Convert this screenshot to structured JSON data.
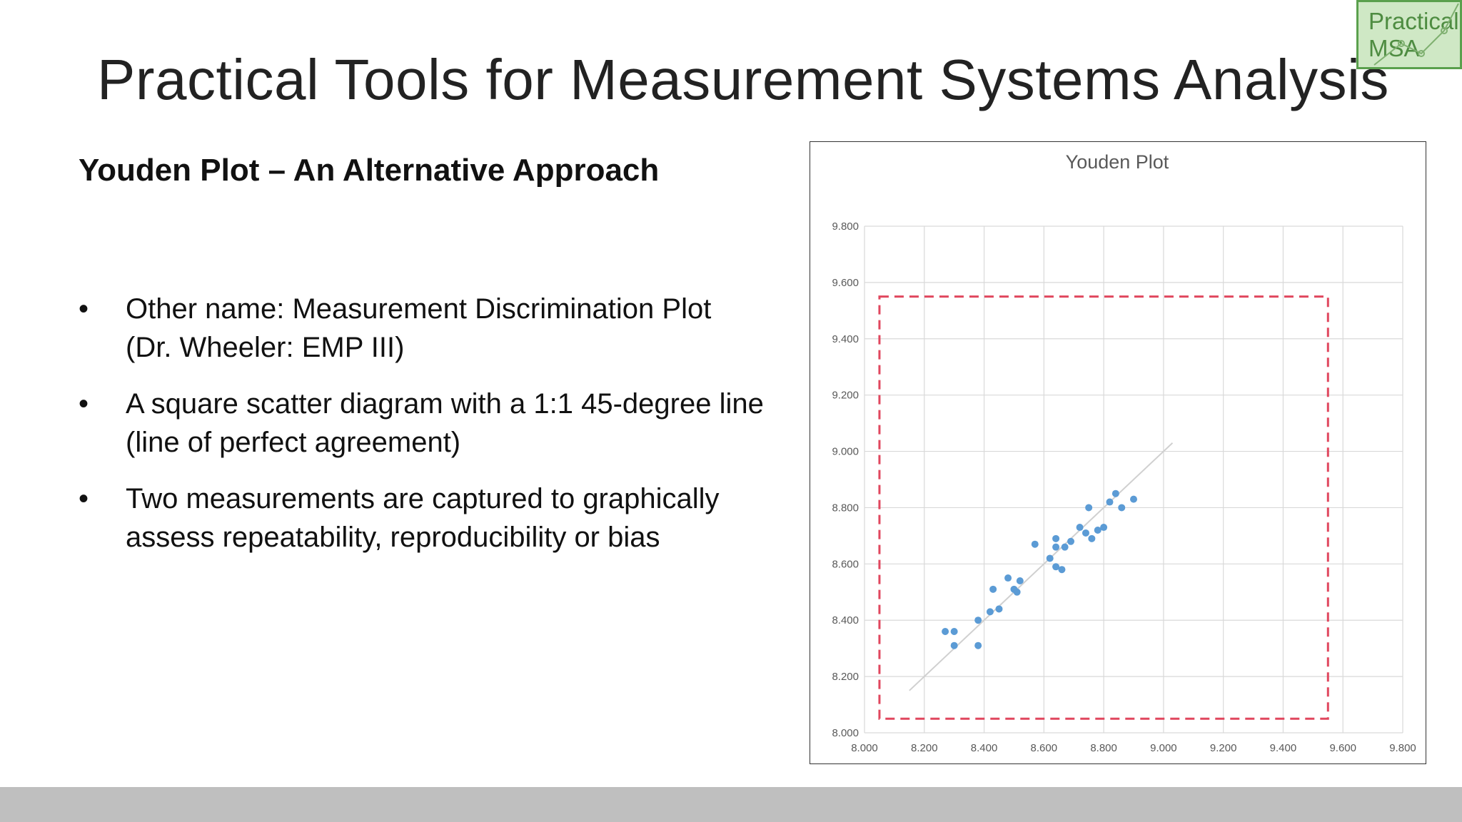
{
  "slide": {
    "title": "Practical Tools for Measurement Systems Analysis",
    "subtitle": "Youden Plot – An Alternative Approach",
    "bullets": [
      {
        "lines": [
          "Other name: Measurement Discrimination Plot",
          "(Dr. Wheeler: EMP III)"
        ]
      },
      {
        "lines": [
          "A square scatter diagram with a 1:1 45-degree line",
          "(line of perfect agreement)"
        ]
      },
      {
        "lines": [
          "Two measurements are captured to graphically",
          "assess repeatability, reproducibility or bias"
        ]
      }
    ],
    "bullet_symbol": "•"
  },
  "logo": {
    "line1": "Practical",
    "line2": "MSA",
    "background": "#cfe8c5",
    "border": "#5aa04d"
  },
  "colors": {
    "points": "#5b9bd5",
    "limit_box": "#e0475e",
    "agreement_line": "#d0d0d0",
    "gridlines": "#d9d9d9",
    "footer": "#bfbfbf"
  },
  "chart_data": {
    "type": "scatter",
    "title": "Youden Plot",
    "xlabel": "",
    "ylabel": "",
    "xlim": [
      8.0,
      9.8
    ],
    "ylim": [
      8.0,
      9.8
    ],
    "x_ticks": [
      "8.000",
      "8.200",
      "8.400",
      "8.600",
      "8.800",
      "9.000",
      "9.200",
      "9.400",
      "9.600",
      "9.800"
    ],
    "y_ticks": [
      "8.000",
      "8.200",
      "8.400",
      "8.600",
      "8.800",
      "9.000",
      "9.200",
      "9.400",
      "9.600",
      "9.800"
    ],
    "grid": true,
    "legend": "none",
    "agreement_line": {
      "x": [
        8.15,
        9.03
      ],
      "y": [
        8.15,
        9.03
      ]
    },
    "limit_box": {
      "x": [
        8.05,
        9.55
      ],
      "y": [
        8.05,
        9.55
      ],
      "style": "dashed"
    },
    "series": [
      {
        "points": [
          {
            "x": 8.27,
            "y": 8.36
          },
          {
            "x": 8.3,
            "y": 8.36
          },
          {
            "x": 8.3,
            "y": 8.31
          },
          {
            "x": 8.38,
            "y": 8.31
          },
          {
            "x": 8.38,
            "y": 8.4
          },
          {
            "x": 8.42,
            "y": 8.43
          },
          {
            "x": 8.45,
            "y": 8.44
          },
          {
            "x": 8.43,
            "y": 8.51
          },
          {
            "x": 8.48,
            "y": 8.55
          },
          {
            "x": 8.5,
            "y": 8.51
          },
          {
            "x": 8.51,
            "y": 8.5
          },
          {
            "x": 8.52,
            "y": 8.54
          },
          {
            "x": 8.57,
            "y": 8.67
          },
          {
            "x": 8.62,
            "y": 8.62
          },
          {
            "x": 8.64,
            "y": 8.59
          },
          {
            "x": 8.66,
            "y": 8.58
          },
          {
            "x": 8.64,
            "y": 8.66
          },
          {
            "x": 8.64,
            "y": 8.69
          },
          {
            "x": 8.67,
            "y": 8.66
          },
          {
            "x": 8.69,
            "y": 8.68
          },
          {
            "x": 8.72,
            "y": 8.73
          },
          {
            "x": 8.74,
            "y": 8.71
          },
          {
            "x": 8.76,
            "y": 8.69
          },
          {
            "x": 8.75,
            "y": 8.8
          },
          {
            "x": 8.78,
            "y": 8.72
          },
          {
            "x": 8.8,
            "y": 8.73
          },
          {
            "x": 8.82,
            "y": 8.82
          },
          {
            "x": 8.84,
            "y": 8.85
          },
          {
            "x": 8.86,
            "y": 8.8
          },
          {
            "x": 8.9,
            "y": 8.83
          }
        ]
      }
    ]
  }
}
